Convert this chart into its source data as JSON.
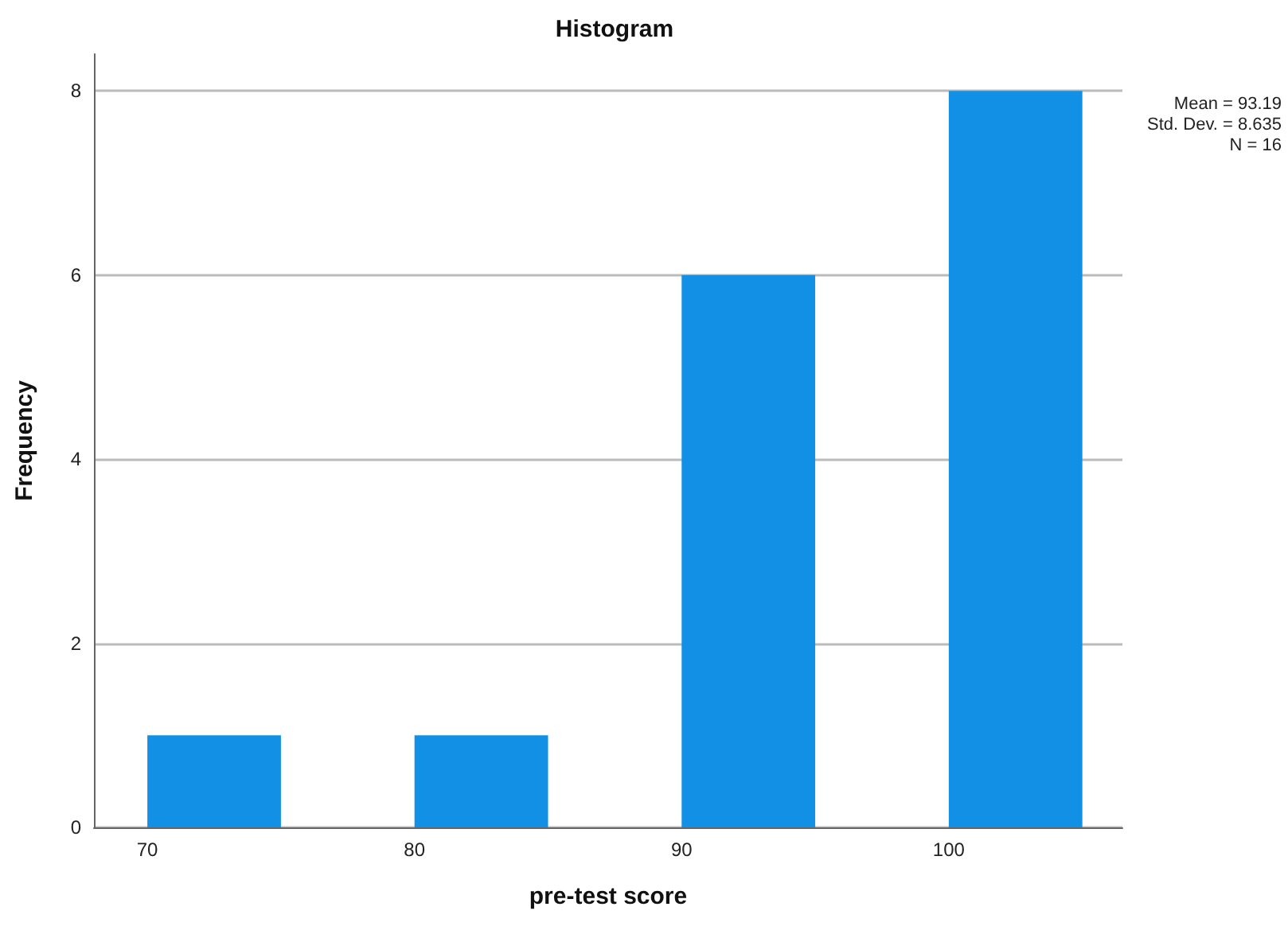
{
  "chart_data": {
    "type": "histogram",
    "title": "Histogram",
    "xlabel": "pre-test score",
    "ylabel": "Frequency",
    "bins": [
      70,
      75,
      80,
      85,
      90,
      95,
      100,
      105
    ],
    "values": [
      1,
      0,
      1,
      0,
      6,
      0,
      8
    ],
    "color": "#1290e6",
    "xlim": [
      68,
      106.5
    ],
    "xticks": [
      70,
      80,
      90,
      100
    ],
    "ylim": [
      0,
      8.4
    ],
    "yticks": [
      0,
      2,
      4,
      6,
      8
    ],
    "grid": "y",
    "annotations": [
      "Mean = 93.19",
      "Std. Dev. = 8.635",
      "N = 16"
    ]
  }
}
